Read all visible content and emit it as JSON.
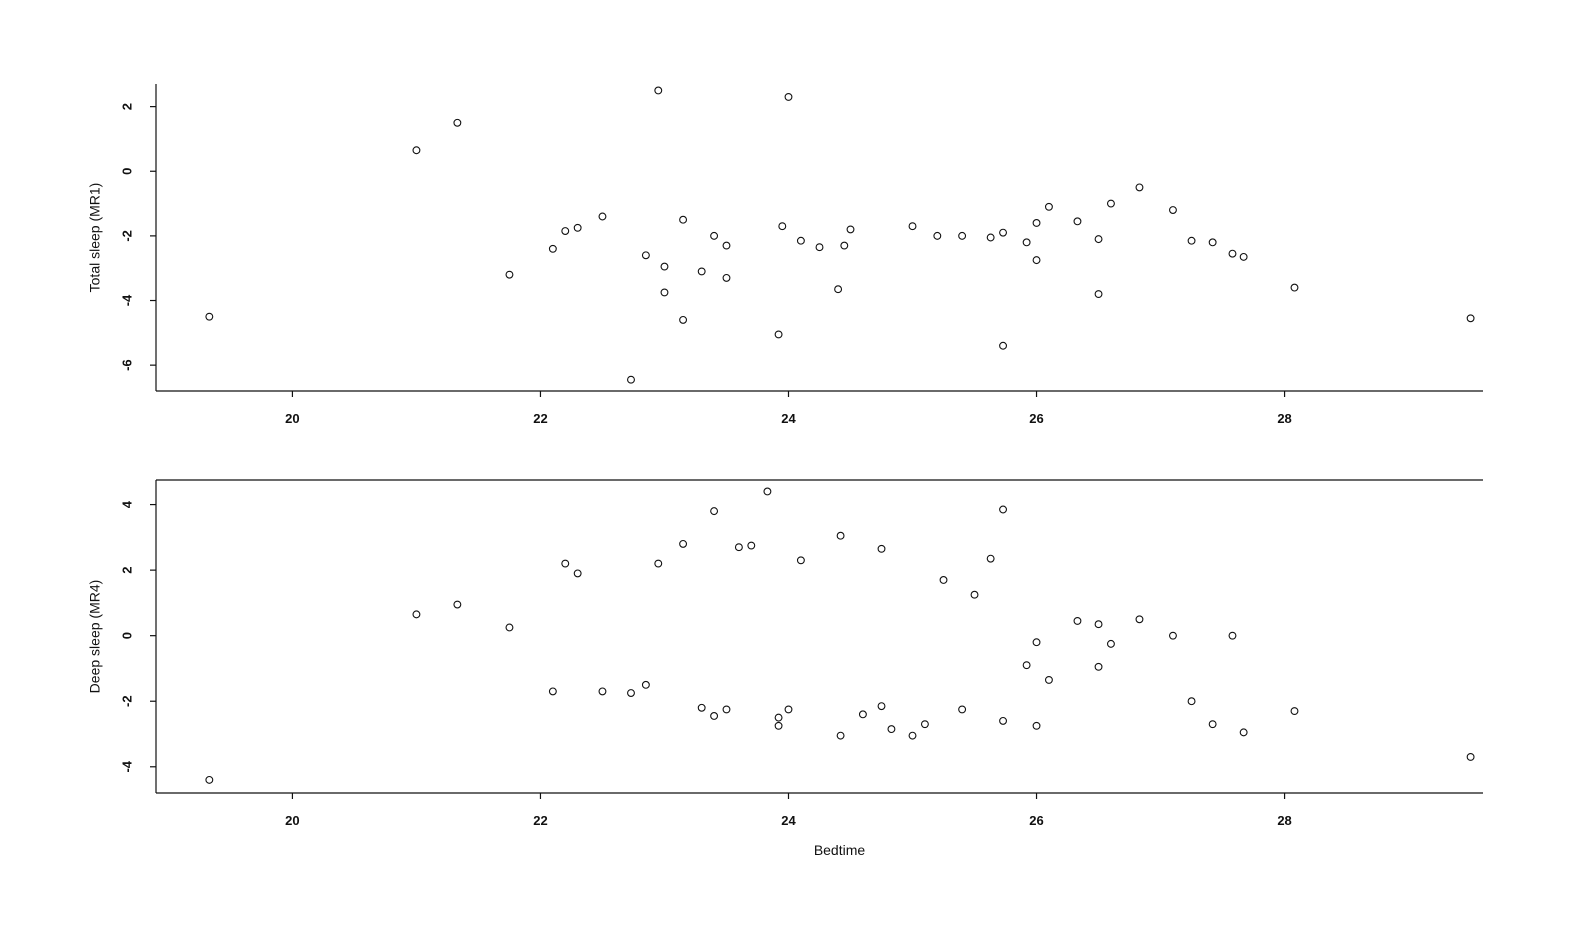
{
  "chart_data": [
    {
      "type": "scatter",
      "xlabel": "",
      "ylabel": "Total sleep (MR1)",
      "xlim": [
        18.9,
        29.6
      ],
      "ylim": [
        -6.8,
        2.7
      ],
      "x_ticks": [
        20,
        22,
        24,
        26,
        28
      ],
      "y_ticks": [
        -6,
        -4,
        -2,
        0,
        2
      ],
      "grid": false,
      "points": [
        [
          19.33,
          -4.5
        ],
        [
          21.0,
          0.65
        ],
        [
          21.33,
          1.5
        ],
        [
          21.75,
          -3.2
        ],
        [
          22.1,
          -2.4
        ],
        [
          22.2,
          -1.85
        ],
        [
          22.3,
          -1.75
        ],
        [
          22.5,
          -1.4
        ],
        [
          22.73,
          -6.45
        ],
        [
          22.85,
          -2.6
        ],
        [
          22.95,
          2.5
        ],
        [
          23.0,
          -2.95
        ],
        [
          23.0,
          -3.75
        ],
        [
          23.15,
          -4.6
        ],
        [
          23.15,
          -1.5
        ],
        [
          23.3,
          -3.1
        ],
        [
          23.4,
          -2.0
        ],
        [
          23.5,
          -2.3
        ],
        [
          23.5,
          -3.3
        ],
        [
          23.92,
          -5.05
        ],
        [
          23.95,
          -1.7
        ],
        [
          24.0,
          2.3
        ],
        [
          24.1,
          -2.15
        ],
        [
          24.25,
          -2.35
        ],
        [
          24.4,
          -3.65
        ],
        [
          24.45,
          -2.3
        ],
        [
          24.5,
          -1.8
        ],
        [
          25.0,
          -1.7
        ],
        [
          25.2,
          -2.0
        ],
        [
          25.4,
          -2.0
        ],
        [
          25.63,
          -2.05
        ],
        [
          25.73,
          -5.4
        ],
        [
          25.73,
          -1.9
        ],
        [
          25.92,
          -2.2
        ],
        [
          26.0,
          -2.75
        ],
        [
          26.0,
          -1.6
        ],
        [
          26.1,
          -1.1
        ],
        [
          26.33,
          -1.55
        ],
        [
          26.5,
          -2.1
        ],
        [
          26.5,
          -3.8
        ],
        [
          26.6,
          -1.0
        ],
        [
          26.83,
          -0.5
        ],
        [
          27.1,
          -1.2
        ],
        [
          27.25,
          -2.15
        ],
        [
          27.42,
          -2.2
        ],
        [
          27.58,
          -2.55
        ],
        [
          27.67,
          -2.65
        ],
        [
          28.08,
          -3.6
        ],
        [
          29.5,
          -4.55
        ]
      ]
    },
    {
      "type": "scatter",
      "xlabel": "Bedtime",
      "ylabel": "Deep sleep (MR4)",
      "xlim": [
        18.9,
        29.6
      ],
      "ylim": [
        -4.8,
        4.75
      ],
      "x_ticks": [
        20,
        22,
        24,
        26,
        28
      ],
      "y_ticks": [
        -4,
        -2,
        0,
        2,
        4
      ],
      "grid": false,
      "points": [
        [
          19.33,
          -4.4
        ],
        [
          21.0,
          0.65
        ],
        [
          21.33,
          0.95
        ],
        [
          21.75,
          0.25
        ],
        [
          22.1,
          -1.7
        ],
        [
          22.2,
          2.2
        ],
        [
          22.3,
          1.9
        ],
        [
          22.5,
          -1.7
        ],
        [
          22.73,
          -1.75
        ],
        [
          22.85,
          -1.5
        ],
        [
          22.95,
          2.2
        ],
        [
          23.15,
          2.8
        ],
        [
          23.3,
          -2.2
        ],
        [
          23.4,
          3.8
        ],
        [
          23.4,
          -2.45
        ],
        [
          23.5,
          -2.25
        ],
        [
          23.6,
          2.7
        ],
        [
          23.7,
          2.75
        ],
        [
          23.83,
          4.4
        ],
        [
          23.92,
          -2.5
        ],
        [
          23.92,
          -2.75
        ],
        [
          24.0,
          -2.25
        ],
        [
          24.1,
          2.3
        ],
        [
          24.42,
          3.05
        ],
        [
          24.42,
          -3.05
        ],
        [
          24.6,
          -2.4
        ],
        [
          24.75,
          2.65
        ],
        [
          24.75,
          -2.15
        ],
        [
          24.83,
          -2.85
        ],
        [
          25.0,
          -3.05
        ],
        [
          25.1,
          -2.7
        ],
        [
          25.25,
          1.7
        ],
        [
          25.4,
          -2.25
        ],
        [
          25.5,
          1.25
        ],
        [
          25.63,
          2.35
        ],
        [
          25.73,
          3.85
        ],
        [
          25.73,
          -2.6
        ],
        [
          25.92,
          -0.9
        ],
        [
          26.0,
          -2.75
        ],
        [
          26.0,
          -0.2
        ],
        [
          26.1,
          -1.35
        ],
        [
          26.33,
          0.45
        ],
        [
          26.5,
          0.35
        ],
        [
          26.5,
          -0.95
        ],
        [
          26.6,
          -0.25
        ],
        [
          26.83,
          0.5
        ],
        [
          27.1,
          0.0
        ],
        [
          27.25,
          -2.0
        ],
        [
          27.42,
          -2.7
        ],
        [
          27.58,
          0.0
        ],
        [
          27.67,
          -2.95
        ],
        [
          28.08,
          -2.3
        ],
        [
          29.5,
          -3.7
        ]
      ]
    }
  ]
}
